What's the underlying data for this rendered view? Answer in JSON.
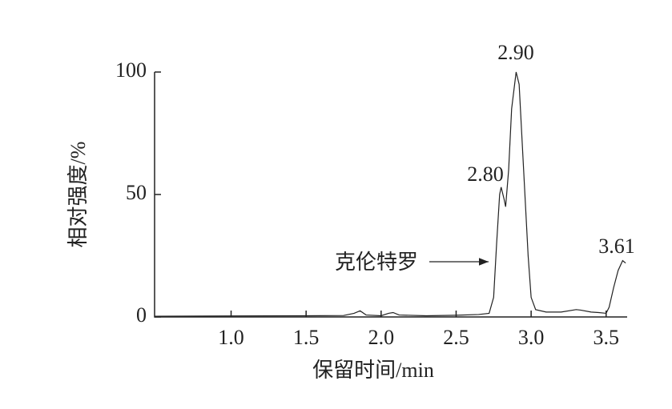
{
  "chart_data": {
    "type": "line",
    "x_label": "保留时间/min",
    "y_label": "相对强度/%",
    "xlim": [
      0.49,
      3.64
    ],
    "ylim": [
      0,
      100
    ],
    "xticks": [
      {
        "value": 1,
        "label": "1.0"
      },
      1.5,
      {
        "value": 2,
        "label": "2.0"
      },
      2.5,
      {
        "value": 3,
        "label": "3.0"
      },
      3.5
    ],
    "yticks": [
      0,
      50,
      100
    ],
    "series": [
      {
        "color": "#222222",
        "x": [
          0.49,
          1.0,
          1.5,
          1.75,
          1.82,
          1.86,
          1.9,
          2.0,
          2.05,
          2.08,
          2.12,
          2.3,
          2.5,
          2.65,
          2.72,
          2.75,
          2.77,
          2.79,
          2.8,
          2.82,
          2.83,
          2.85,
          2.87,
          2.9,
          2.92,
          2.95,
          2.98,
          3.0,
          3.03,
          3.1,
          3.2,
          3.3,
          3.33,
          3.4,
          3.45,
          3.5,
          3.52,
          3.55,
          3.58,
          3.61,
          3.63
        ],
        "values": [
          0.3,
          0.4,
          0.5,
          0.6,
          1.5,
          2.5,
          0.8,
          0.5,
          1.5,
          1.8,
          0.8,
          0.5,
          0.7,
          1,
          1.5,
          8,
          30,
          50,
          53,
          48,
          45,
          60,
          85,
          100,
          95,
          60,
          25,
          8,
          3,
          2,
          2,
          3,
          2.8,
          2,
          1.8,
          1.5,
          4,
          12,
          19,
          23,
          22
        ]
      }
    ],
    "annotations": [
      {
        "text": "2.90"
      },
      {
        "text": "2.80"
      },
      {
        "text": "3.61"
      },
      {
        "text": "克伦特罗"
      }
    ]
  }
}
